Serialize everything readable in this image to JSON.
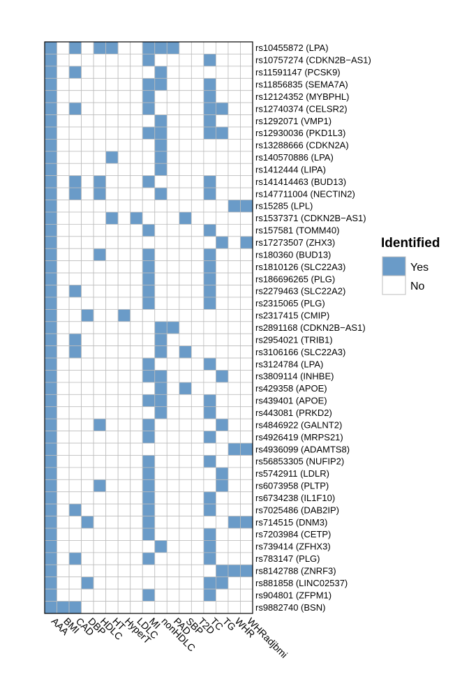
{
  "chart_data": {
    "type": "heatmap",
    "columns": [
      "AAA",
      "BMI",
      "CAD",
      "DBP",
      "HDLC",
      "HT",
      "HyperT",
      "LDLC",
      "MI",
      "nonHDLC",
      "PAD",
      "SBP",
      "T2D",
      "TC",
      "TG",
      "WHR",
      "WHRadjbmi"
    ],
    "rows": [
      "rs10455872 (LPA)",
      "rs10757274 (CDKN2B−AS1)",
      "rs11591147 (PCSK9)",
      "rs11856835 (SEMA7A)",
      "rs12124352 (MYBPHL)",
      "rs12740374 (CELSR2)",
      "rs1292071 (VMP1)",
      "rs12930036 (PKD1L3)",
      "rs13288666 (CDKN2A)",
      "rs140570886 (LPA)",
      "rs1412444 (LIPA)",
      "rs141414463 (BUD13)",
      "rs147711004 (NECTIN2)",
      "rs15285 (LPL)",
      "rs1537371 (CDKN2B−AS1)",
      "rs157581 (TOMM40)",
      "rs17273507 (ZHX3)",
      "rs180360 (BUD13)",
      "rs1810126 (SLC22A3)",
      "rs186696265 (PLG)",
      "rs2279463 (SLC22A2)",
      "rs2315065 (PLG)",
      "rs2317415 (CMIP)",
      "rs2891168 (CDKN2B−AS1)",
      "rs2954021 (TRIB1)",
      "rs3106166 (SLC22A3)",
      "rs3124784 (LPA)",
      "rs3809114 (INHBE)",
      "rs429358 (APOE)",
      "rs439401 (APOE)",
      "rs443081 (PRKD2)",
      "rs4846922 (GALNT2)",
      "rs4926419 (MRPS21)",
      "rs4936099 (ADAMTS8)",
      "rs56853305 (NUFIP2)",
      "rs5742911 (LDLR)",
      "rs6073958 (PLTP)",
      "rs6734238 (IL1F10)",
      "rs7025486 (DAB2IP)",
      "rs714515 (DNM3)",
      "rs7203984 (CETP)",
      "rs739414 (ZFHX3)",
      "rs783147 (PLG)",
      "rs8142788 (ZNRF3)",
      "rs881858 (LINC02537)",
      "rs904801 (ZFPM1)",
      "rs9882740 (BSN)"
    ],
    "identified": [
      [
        0,
        2,
        4,
        5,
        8,
        9,
        10
      ],
      [
        0,
        8,
        13
      ],
      [
        0,
        2,
        9
      ],
      [
        0,
        8,
        9,
        13
      ],
      [
        0,
        8,
        13
      ],
      [
        0,
        2,
        8,
        13,
        14
      ],
      [
        0,
        9,
        13
      ],
      [
        0,
        8,
        9,
        13,
        14
      ],
      [
        0,
        9
      ],
      [
        0,
        5,
        9
      ],
      [
        0,
        9
      ],
      [
        0,
        2,
        4,
        8,
        13
      ],
      [
        0,
        2,
        4,
        9,
        13
      ],
      [
        0,
        15,
        16
      ],
      [
        0,
        5,
        7,
        11
      ],
      [
        0,
        8,
        13
      ],
      [
        0,
        14,
        16
      ],
      [
        0,
        4,
        8,
        13
      ],
      [
        0,
        8,
        13
      ],
      [
        0,
        8,
        13
      ],
      [
        0,
        2,
        8,
        13
      ],
      [
        0,
        8,
        13
      ],
      [
        0,
        3,
        6
      ],
      [
        0,
        9,
        10
      ],
      [
        0,
        2,
        9
      ],
      [
        0,
        2,
        9,
        11
      ],
      [
        0,
        8,
        13
      ],
      [
        0,
        8,
        9,
        14
      ],
      [
        0,
        9,
        11
      ],
      [
        0,
        8,
        9,
        13
      ],
      [
        0,
        9,
        13
      ],
      [
        0,
        4,
        8,
        14
      ],
      [
        0,
        8,
        13
      ],
      [
        0,
        15,
        16
      ],
      [
        0,
        8,
        13
      ],
      [
        0,
        8,
        14
      ],
      [
        0,
        4,
        8,
        14
      ],
      [
        0,
        8,
        13
      ],
      [
        0,
        2,
        8,
        13
      ],
      [
        0,
        3,
        8,
        15,
        16
      ],
      [
        0,
        8,
        13
      ],
      [
        0,
        9,
        13
      ],
      [
        0,
        2,
        8,
        13
      ],
      [
        0,
        14,
        15,
        16
      ],
      [
        0,
        3,
        13,
        14
      ],
      [
        0,
        8,
        13
      ],
      [
        0,
        1,
        2
      ]
    ],
    "legend": {
      "title": "Identified",
      "entries": [
        {
          "label": "Yes",
          "color": "#6a9bc8"
        },
        {
          "label": "No",
          "color": "#ffffff"
        }
      ],
      "position": "right"
    },
    "colors": {
      "yes": "#6a9bc8",
      "no": "#ffffff",
      "grid": "#bdbdbd",
      "border": "#000000"
    }
  }
}
